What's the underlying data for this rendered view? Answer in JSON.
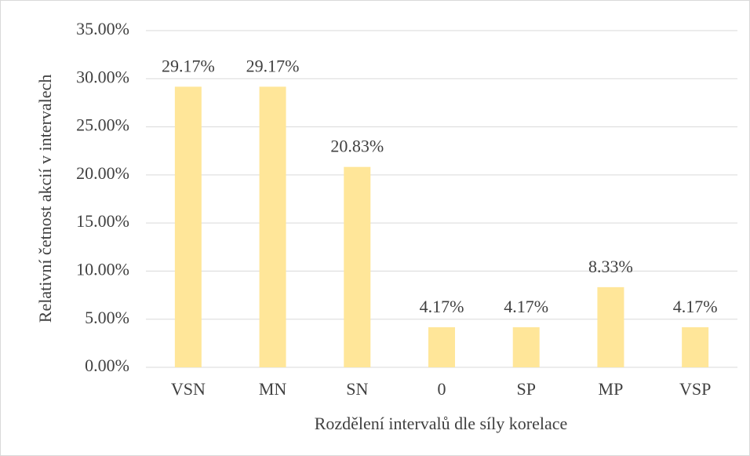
{
  "chart_data": {
    "type": "bar",
    "x_label": "Rozdělení intervalů dle síly korelace",
    "y_label": "Relativní četnost akcií v  intervalech",
    "categories": [
      "VSN",
      "MN",
      "SN",
      "0",
      "SP",
      "MP",
      "VSP"
    ],
    "values": [
      29.17,
      29.17,
      20.83,
      4.17,
      4.17,
      8.33,
      4.17
    ],
    "value_labels": [
      "29.17%",
      "29.17%",
      "20.83%",
      "4.17%",
      "4.17%",
      "8.33%",
      "4.17%"
    ],
    "color": "#ffe699",
    "ylim": [
      0,
      35
    ],
    "yticks": [
      {
        "value": 0,
        "label": "0.00%"
      },
      {
        "value": 5,
        "label": "5.00%"
      },
      {
        "value": 10,
        "label": "10.00%"
      },
      {
        "value": 15,
        "label": "15.00%"
      },
      {
        "value": 20,
        "label": "20.00%"
      },
      {
        "value": 25,
        "label": "25.00%"
      },
      {
        "value": 30,
        "label": "30.00%"
      },
      {
        "value": 35,
        "label": "35.00%"
      }
    ],
    "grid": true
  }
}
